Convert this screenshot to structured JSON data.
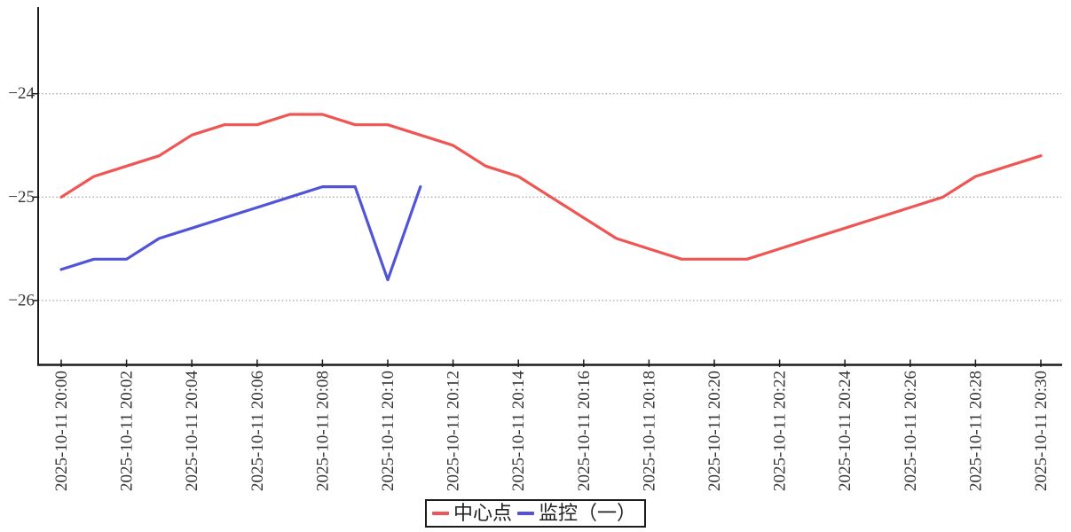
{
  "chart_data": {
    "type": "line",
    "title": "",
    "x_axis": {
      "tick_labels": [
        "2025-10-11 20:00",
        "2025-10-11 20:02",
        "2025-10-11 20:04",
        "2025-10-11 20:06",
        "2025-10-11 20:08",
        "2025-10-11 20:10",
        "2025-10-11 20:12",
        "2025-10-11 20:14",
        "2025-10-11 20:16",
        "2025-10-11 20:18",
        "2025-10-11 20:20",
        "2025-10-11 20:22",
        "2025-10-11 20:24",
        "2025-10-11 20:26",
        "2025-10-11 20:28",
        "2025-10-11 20:30"
      ],
      "tick_minutes": [
        0,
        2,
        4,
        6,
        8,
        10,
        12,
        14,
        16,
        18,
        20,
        22,
        24,
        26,
        28,
        30
      ],
      "minutes_range": [
        0,
        30
      ]
    },
    "y_axis": {
      "tick_values": [
        -24,
        -25,
        -26
      ],
      "tick_labels": [
        "−24",
        "−25",
        "−26"
      ],
      "ylim": [
        -26.6,
        -23.2
      ]
    },
    "grid": {
      "horizontal_dotted": true,
      "color": "#8a8a8a"
    },
    "legend_position": "bottom-center",
    "series": [
      {
        "name": "中心点",
        "color": "#ef5552",
        "start_minute": 0,
        "values": [
          -25.0,
          -24.8,
          -24.7,
          -24.6,
          -24.4,
          -24.3,
          -24.3,
          -24.2,
          -24.2,
          -24.3,
          -24.3,
          -24.4,
          -24.5,
          -24.7,
          -24.8,
          -25.0,
          -25.2,
          -25.4,
          -25.5,
          -25.6,
          -25.6,
          -25.6,
          -25.5,
          -25.4,
          -25.3,
          -25.2,
          -25.1,
          -25.0,
          -24.8,
          -24.7,
          -24.6
        ]
      },
      {
        "name": "监控（一）",
        "color": "#5254d8",
        "start_minute": 0,
        "values": [
          -25.7,
          -25.6,
          -25.6,
          -25.4,
          -25.3,
          -25.2,
          -25.1,
          -25.0,
          -24.9,
          -24.9,
          -25.8,
          -24.9
        ]
      }
    ]
  }
}
